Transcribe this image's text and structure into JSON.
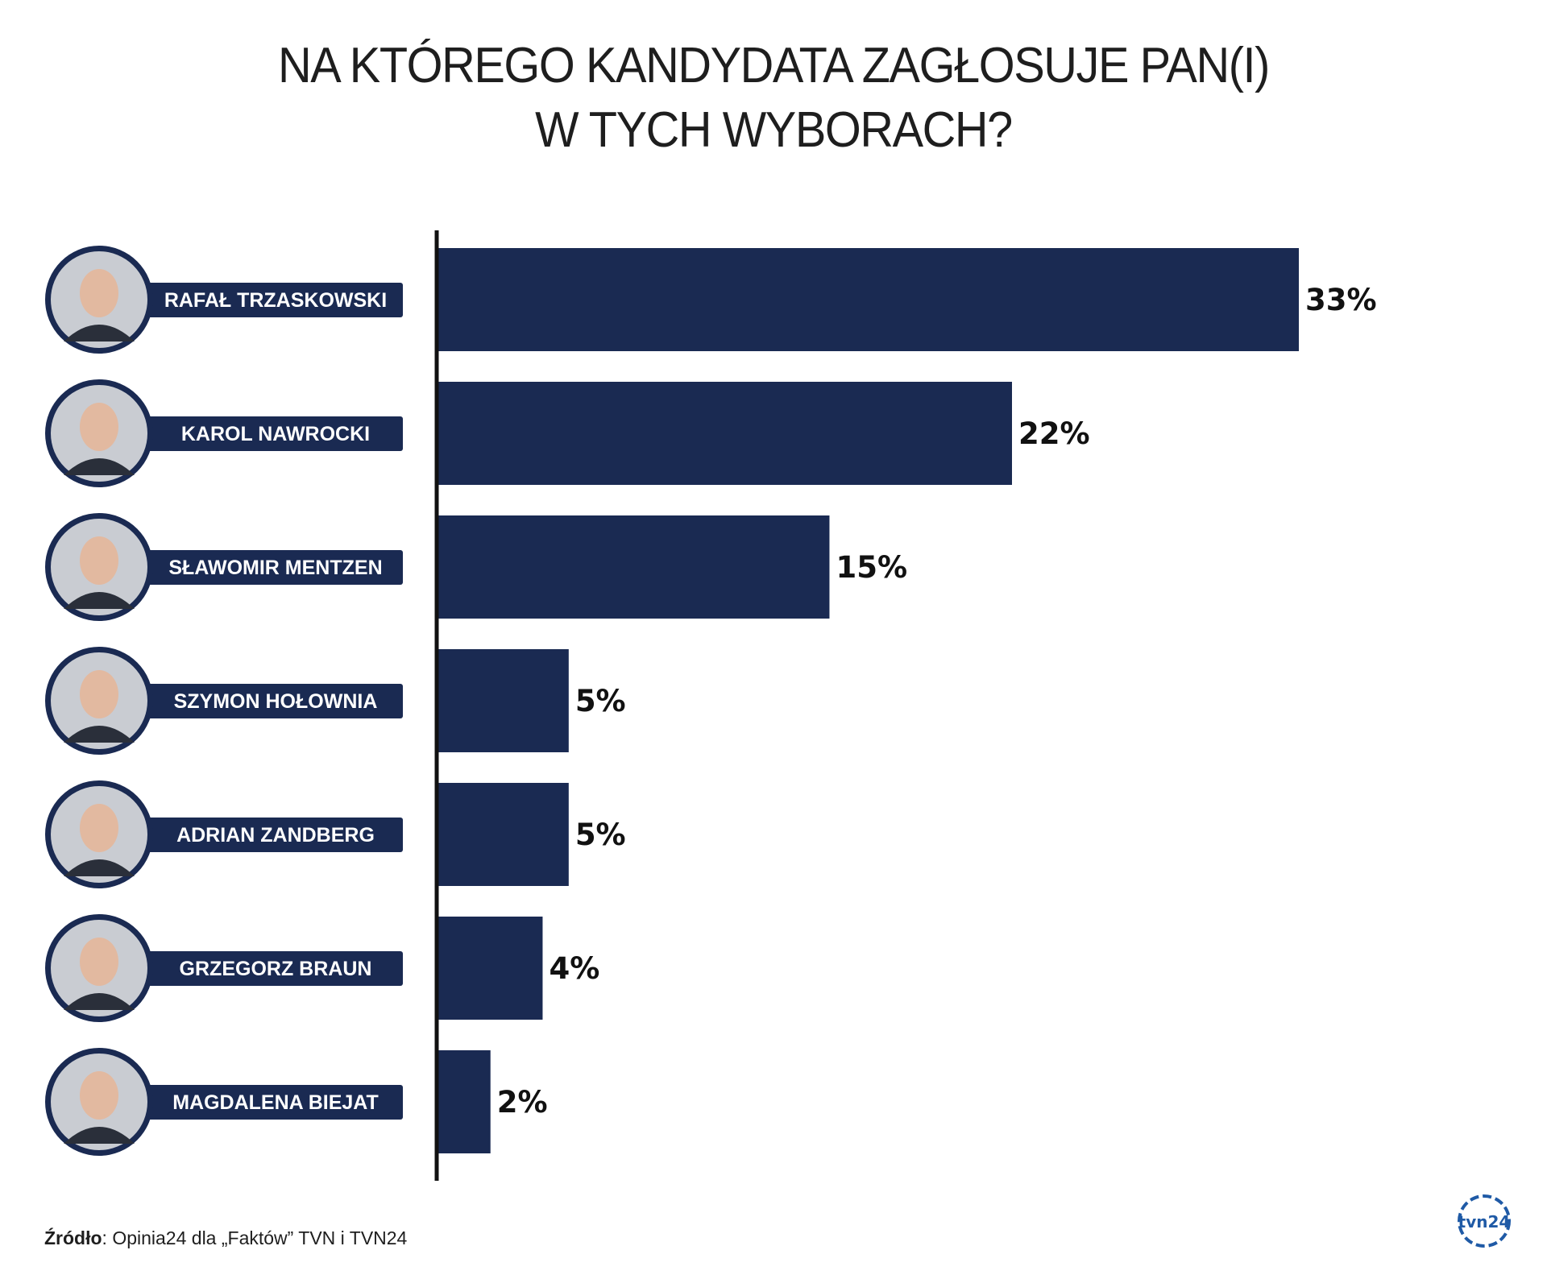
{
  "title": {
    "line1": "NA KTÓREGO KANDYDATA ZAGŁOSUJE PAN(I)",
    "line2": "W TYCH WYBORACH?"
  },
  "source": {
    "label": "Źródło",
    "text": ": Opinia24 dla „Faktów” TVN i TVN24"
  },
  "logo": {
    "text": "tvn24",
    "icon": "tvn24-logo-icon",
    "color": "#1f5aa6"
  },
  "colors": {
    "bar": "#1a2a52",
    "axis": "#111111",
    "photo": "#c9ccd2"
  },
  "chart_data": {
    "type": "bar",
    "orientation": "horizontal",
    "categories": [
      "RAFAŁ TRZASKOWSKI",
      "KAROL NAWROCKI",
      "SŁAWOMIR MENTZEN",
      "SZYMON HOŁOWNIA",
      "ADRIAN ZANDBERG",
      "GRZEGORZ BRAUN",
      "MAGDALENA BIEJAT"
    ],
    "values": [
      33,
      22,
      15,
      5,
      5,
      4,
      2
    ],
    "value_labels": [
      "33%",
      "22%",
      "15%",
      "5%",
      "5%",
      "4%",
      "2%"
    ],
    "unit": "%",
    "xlim": [
      0,
      33
    ],
    "grid": false,
    "legend": "none"
  }
}
